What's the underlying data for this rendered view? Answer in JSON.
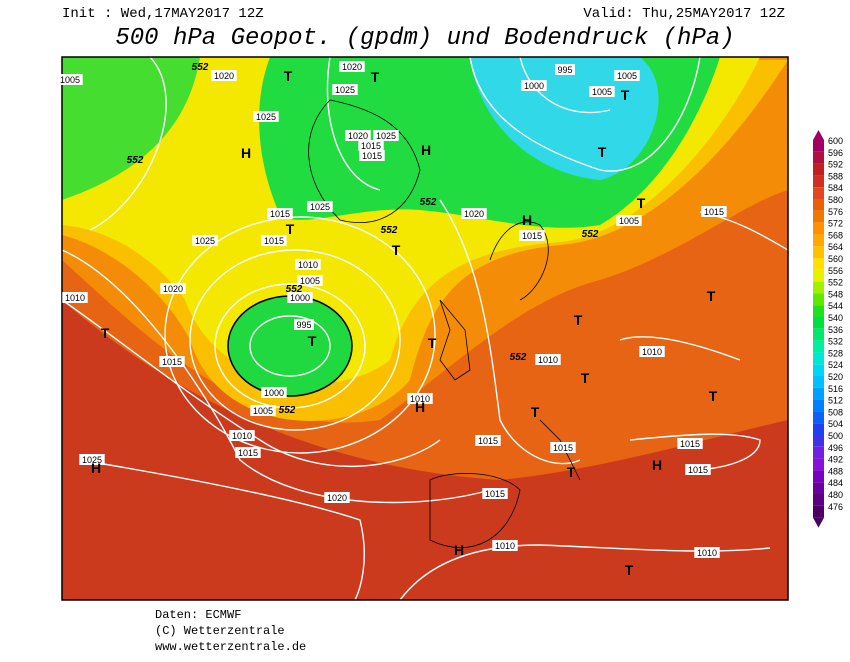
{
  "header": {
    "init": "Init : Wed,17MAY2017 12Z",
    "valid": "Valid: Thu,25MAY2017 12Z",
    "title": "500 hPa Geopot. (gpdm) und Bodendruck (hPa)"
  },
  "footer": {
    "source": "Daten: ECMWF",
    "copyright": "(C) Wetterzentrale",
    "url": "www.wetterzentrale.de"
  },
  "colorbar": {
    "labels": [
      600,
      596,
      592,
      588,
      584,
      580,
      576,
      572,
      568,
      564,
      560,
      556,
      552,
      548,
      544,
      540,
      536,
      532,
      528,
      524,
      520,
      516,
      512,
      508,
      504,
      500,
      496,
      492,
      488,
      484,
      480,
      476
    ],
    "colors": [
      "#a00060",
      "#b01040",
      "#c02020",
      "#d03020",
      "#e04820",
      "#e86000",
      "#f07800",
      "#ff9000",
      "#ffa800",
      "#ffc000",
      "#ffe000",
      "#e8f000",
      "#a0f000",
      "#60e800",
      "#20e020",
      "#00e040",
      "#00e870",
      "#00f0a0",
      "#00e8d0",
      "#00d8f0",
      "#00c0ff",
      "#00a0ff",
      "#0080ff",
      "#1060f8",
      "#2040f0",
      "#4030e8",
      "#7020e0",
      "#8a10d8",
      "#7a00c0",
      "#6a00a0",
      "#5a0080",
      "#4b0060"
    ]
  },
  "map": {
    "labels": [
      "1005",
      "552",
      "1020",
      "T",
      "1020",
      "T",
      "1025",
      "995",
      "1005",
      "1000",
      "1005",
      "T",
      "1025",
      "1020",
      "1025",
      "1015",
      "1015",
      "H",
      "T",
      "552",
      "H",
      "1025",
      "552",
      "1020",
      "H",
      "T",
      "1015",
      "1015",
      "552",
      "1005",
      "1015",
      "1025",
      "1015",
      "T",
      "552",
      "T",
      "1010",
      "1005",
      "552",
      "1000",
      "1020",
      "1010",
      "T",
      "995",
      "T",
      "T",
      "T",
      "T",
      "552",
      "1010",
      "1010",
      "T",
      "1015",
      "1000",
      "1005",
      "552",
      "1010",
      "H",
      "T",
      "T",
      "1010",
      "1015",
      "1015",
      "1015",
      "1015",
      "1025",
      "H",
      "H",
      "1015",
      "T",
      "1015",
      "1020",
      "1010",
      "H",
      "1010",
      "T"
    ]
  }
}
